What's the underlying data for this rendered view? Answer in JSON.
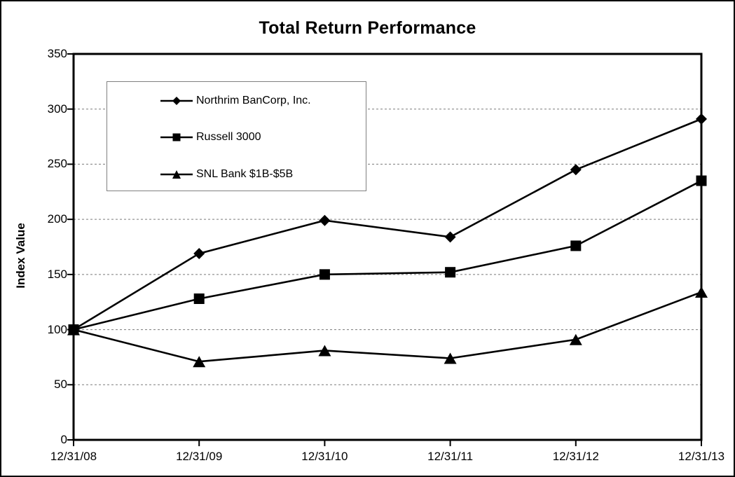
{
  "chart_data": {
    "type": "line",
    "title": "Total Return Performance",
    "xlabel": "",
    "ylabel": "Index Value",
    "categories": [
      "12/31/08",
      "12/31/09",
      "12/31/10",
      "12/31/11",
      "12/31/12",
      "12/31/13"
    ],
    "series": [
      {
        "name": "Northrim BanCorp, Inc.",
        "marker": "diamond",
        "values": [
          100,
          169,
          199,
          184,
          245,
          291
        ]
      },
      {
        "name": "Russell 3000",
        "marker": "square",
        "values": [
          100,
          128,
          150,
          152,
          176,
          235
        ]
      },
      {
        "name": "SNL Bank $1B-$5B",
        "marker": "triangle",
        "values": [
          100,
          71,
          81,
          74,
          91,
          134
        ]
      }
    ],
    "ylim": [
      0,
      350
    ],
    "y_ticks": [
      0,
      50,
      100,
      150,
      200,
      250,
      300,
      350
    ],
    "grid": "horizontal-dashed",
    "legend_position": "top-left-inside"
  },
  "colors": {
    "line": "#000000",
    "frame": "#000000",
    "grid": "#7a7a7a",
    "legend_border": "#808080",
    "background": "#ffffff"
  }
}
